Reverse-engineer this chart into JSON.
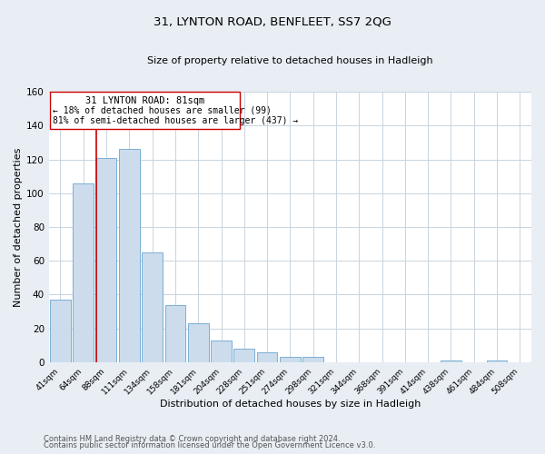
{
  "title": "31, LYNTON ROAD, BENFLEET, SS7 2QG",
  "subtitle": "Size of property relative to detached houses in Hadleigh",
  "xlabel": "Distribution of detached houses by size in Hadleigh",
  "ylabel": "Number of detached properties",
  "bar_color": "#ccdcec",
  "bar_edge_color": "#7aafd4",
  "marker_line_color": "#cc0000",
  "categories": [
    "41sqm",
    "64sqm",
    "88sqm",
    "111sqm",
    "134sqm",
    "158sqm",
    "181sqm",
    "204sqm",
    "228sqm",
    "251sqm",
    "274sqm",
    "298sqm",
    "321sqm",
    "344sqm",
    "368sqm",
    "391sqm",
    "414sqm",
    "438sqm",
    "461sqm",
    "484sqm",
    "508sqm"
  ],
  "values": [
    37,
    106,
    121,
    126,
    65,
    34,
    23,
    13,
    8,
    6,
    3,
    3,
    0,
    0,
    0,
    0,
    0,
    1,
    0,
    1,
    0
  ],
  "ylim": [
    0,
    160
  ],
  "yticks": [
    0,
    20,
    40,
    60,
    80,
    100,
    120,
    140,
    160
  ],
  "annotation_title": "31 LYNTON ROAD: 81sqm",
  "annotation_line1": "← 18% of detached houses are smaller (99)",
  "annotation_line2": "81% of semi-detached houses are larger (437) →",
  "footer_line1": "Contains HM Land Registry data © Crown copyright and database right 2024.",
  "footer_line2": "Contains public sector information licensed under the Open Government Licence v3.0.",
  "background_color": "#e8eef4",
  "plot_bg_color": "#ffffff",
  "grid_color": "#c8d4de"
}
